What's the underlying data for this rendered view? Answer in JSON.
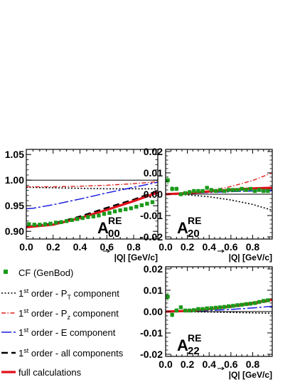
{
  "chart_data": [
    {
      "type": "line",
      "panel": "A00",
      "title": {
        "main": "A",
        "sup": "RE",
        "sub": "00"
      },
      "xlabel": "|Q| [GeV/c]",
      "xlim": [
        0.0,
        0.98
      ],
      "ylim": [
        0.885,
        1.06
      ],
      "xticks": [
        "0.0",
        "0.2",
        "0.4",
        "0.6",
        "0.8"
      ],
      "yticks": [
        "0.90",
        "0.95",
        "1.00",
        "1.05"
      ],
      "yticks_values": [
        0.9,
        0.95,
        1.0,
        1.05
      ],
      "reference_line": 1.0,
      "markers": {
        "name": "CF (GenBod)",
        "x": [
          0.02,
          0.06,
          0.1,
          0.14,
          0.18,
          0.22,
          0.26,
          0.3,
          0.34,
          0.38,
          0.42,
          0.46,
          0.5,
          0.54,
          0.58,
          0.62,
          0.66,
          0.7,
          0.74,
          0.78,
          0.82,
          0.86,
          0.9,
          0.94
        ],
        "y": [
          0.914,
          0.913,
          0.913,
          0.914,
          0.915,
          0.917,
          0.918,
          0.92,
          0.922,
          0.924,
          0.926,
          0.928,
          0.929,
          0.931,
          0.934,
          0.936,
          0.939,
          0.941,
          0.943,
          0.945,
          0.948,
          0.951,
          0.954,
          0.957
        ],
        "yerr": [
          0.003,
          0.002,
          0.002,
          0.002,
          0.002,
          0.002,
          0.002,
          0.002,
          0.002,
          0.002,
          0.002,
          0.002,
          0.002,
          0.002,
          0.002,
          0.002,
          0.002,
          0.002,
          0.002,
          0.002,
          0.002,
          0.002,
          0.002,
          0.002
        ]
      },
      "curves": [
        {
          "name": "1st order - PT component",
          "x": [
            0.0,
            0.2,
            0.4,
            0.6,
            0.8,
            0.98
          ],
          "y": [
            0.986,
            0.985,
            0.984,
            0.983,
            0.983,
            0.983
          ]
        },
        {
          "name": "1st order - Pz component",
          "x": [
            0.0,
            0.2,
            0.4,
            0.6,
            0.8,
            0.98
          ],
          "y": [
            0.987,
            0.987,
            0.988,
            0.99,
            0.993,
            0.997
          ]
        },
        {
          "name": "1st order - E component",
          "x": [
            0.0,
            0.05,
            0.2,
            0.4,
            0.6,
            0.8,
            0.98
          ],
          "y": [
            0.944,
            0.945,
            0.952,
            0.963,
            0.975,
            0.986,
            0.996
          ]
        },
        {
          "name": "1st order - all components",
          "x": [
            0.0,
            0.2,
            0.4,
            0.6,
            0.8,
            0.98
          ],
          "y": [
            0.909,
            0.915,
            0.929,
            0.946,
            0.962,
            0.979
          ]
        },
        {
          "name": "full calculations",
          "x": [
            0.0,
            0.2,
            0.4,
            0.6,
            0.8,
            0.98
          ],
          "y": [
            0.908,
            0.913,
            0.926,
            0.942,
            0.959,
            0.976
          ]
        }
      ]
    },
    {
      "type": "line",
      "panel": "A20",
      "title": {
        "main": "A",
        "sup": "RE",
        "sub": "20"
      },
      "xlabel": "|Q| [GeV/c]",
      "xlim": [
        0.0,
        0.98
      ],
      "ylim": [
        -0.021,
        0.021
      ],
      "xticks": [
        "0.0",
        "0.2",
        "0.4",
        "0.6",
        "0.8"
      ],
      "yticks": [
        "0.02",
        "0.01",
        "0.00",
        "-0.01",
        "-0.02"
      ],
      "yticks_values": [
        0.02,
        0.01,
        0.0,
        -0.01,
        -0.02
      ],
      "reference_line": 0.0,
      "markers": {
        "name": "CF (GenBod)",
        "x": [
          0.02,
          0.06,
          0.1,
          0.14,
          0.18,
          0.22,
          0.26,
          0.3,
          0.34,
          0.38,
          0.42,
          0.46,
          0.5,
          0.54,
          0.58,
          0.62,
          0.66,
          0.7,
          0.74,
          0.78,
          0.82,
          0.86,
          0.9,
          0.94
        ],
        "y": [
          0.0065,
          0.0025,
          0.0025,
          0.0,
          0.0005,
          0.001,
          0.0015,
          0.0015,
          0.0015,
          0.003,
          0.002,
          0.0015,
          0.002,
          0.0015,
          0.002,
          0.002,
          0.002,
          0.0025,
          0.002,
          0.0025,
          0.0015,
          0.002,
          0.0015,
          0.0015
        ],
        "yerr": [
          0.002,
          0.0012,
          0.001,
          0.0008,
          0.0006,
          0.0006,
          0.0005,
          0.0005,
          0.0005,
          0.0005,
          0.0005,
          0.0005,
          0.0005,
          0.0005,
          0.0005,
          0.0005,
          0.0005,
          0.0005,
          0.0005,
          0.0005,
          0.0005,
          0.0005,
          0.0005,
          0.0005
        ]
      },
      "curves": [
        {
          "name": "1st order - PT component",
          "x": [
            0.0,
            0.2,
            0.4,
            0.6,
            0.8,
            0.98
          ],
          "y": [
            0.0,
            -0.0003,
            -0.0012,
            -0.0027,
            -0.0048,
            -0.0075
          ]
        },
        {
          "name": "1st order - Pz component",
          "x": [
            0.0,
            0.2,
            0.4,
            0.6,
            0.8,
            0.98
          ],
          "y": [
            0.0,
            0.0004,
            0.0016,
            0.0036,
            0.0064,
            0.01
          ]
        },
        {
          "name": "1st order - E component",
          "x": [
            0.0,
            0.2,
            0.4,
            0.6,
            0.8,
            0.98
          ],
          "y": [
            0.0,
            0.0003,
            0.0008,
            0.0012,
            0.0015,
            0.0016
          ]
        },
        {
          "name": "1st order - all components",
          "x": [
            0.0,
            0.2,
            0.4,
            0.6,
            0.8,
            0.98
          ],
          "y": [
            0.0,
            0.0004,
            0.0012,
            0.002,
            0.0025,
            0.0027
          ]
        },
        {
          "name": "full calculations",
          "x": [
            0.0,
            0.2,
            0.4,
            0.6,
            0.8,
            0.98
          ],
          "y": [
            0.0,
            0.0005,
            0.0013,
            0.0021,
            0.0027,
            0.003
          ]
        }
      ]
    },
    {
      "type": "line",
      "panel": "A22",
      "title": {
        "main": "A",
        "sup": "RE",
        "sub": "22"
      },
      "xlabel": "|Q| [GeV/c]",
      "xlim": [
        0.0,
        0.98
      ],
      "ylim": [
        -0.021,
        0.021
      ],
      "xticks": [
        "0.0",
        "0.2",
        "0.4",
        "0.6",
        "0.8"
      ],
      "yticks": [
        "0.02",
        "0.01",
        "0.00",
        "-0.01",
        "-0.02"
      ],
      "yticks_values": [
        0.02,
        0.01,
        0.0,
        -0.01,
        -0.02
      ],
      "reference_line": 0.0,
      "markers": {
        "name": "CF (GenBod)",
        "x": [
          0.02,
          0.06,
          0.1,
          0.14,
          0.18,
          0.22,
          0.26,
          0.3,
          0.34,
          0.38,
          0.42,
          0.46,
          0.5,
          0.54,
          0.58,
          0.62,
          0.66,
          0.7,
          0.74,
          0.78,
          0.82,
          0.86,
          0.9,
          0.94
        ],
        "y": [
          0.007,
          -0.0015,
          0.0005,
          0.002,
          0.0005,
          0.0005,
          0.0007,
          0.0012,
          0.0012,
          0.0015,
          0.0016,
          0.0018,
          0.002,
          0.0022,
          0.0025,
          0.0027,
          0.003,
          0.0032,
          0.0035,
          0.0037,
          0.004,
          0.0045,
          0.005,
          0.0053
        ],
        "yerr": [
          0.002,
          0.0012,
          0.001,
          0.0008,
          0.0006,
          0.0006,
          0.0005,
          0.0005,
          0.0005,
          0.0005,
          0.0005,
          0.0005,
          0.0005,
          0.0005,
          0.0005,
          0.0005,
          0.0005,
          0.0005,
          0.0005,
          0.0005,
          0.0005,
          0.0005,
          0.0005,
          0.0005
        ]
      },
      "curves": [
        {
          "name": "1st order - PT component",
          "x": [
            0.0,
            0.2,
            0.4,
            0.6,
            0.8,
            0.98
          ],
          "y": [
            0.0,
            -0.0001,
            -0.0002,
            -0.0004,
            -0.0006,
            -0.0008
          ]
        },
        {
          "name": "1st order - Pz component",
          "x": [
            0.0,
            0.2,
            0.4,
            0.6,
            0.8,
            0.98
          ],
          "y": [
            0.0,
            0.0002,
            0.0009,
            0.0019,
            0.0033,
            0.005
          ]
        },
        {
          "name": "1st order - E component",
          "x": [
            0.0,
            0.2,
            0.4,
            0.6,
            0.8,
            0.98
          ],
          "y": [
            0.0,
            0.0001,
            0.0005,
            0.001,
            0.0017,
            0.0025
          ]
        },
        {
          "name": "1st order - all components",
          "x": [
            0.0,
            0.2,
            0.4,
            0.6,
            0.8,
            0.98
          ],
          "y": [
            0.0,
            0.0003,
            0.0012,
            0.0025,
            0.004,
            0.0055
          ]
        },
        {
          "name": "full calculations",
          "x": [
            0.0,
            0.2,
            0.4,
            0.6,
            0.8,
            0.98
          ],
          "y": [
            0.0,
            0.0003,
            0.0011,
            0.0024,
            0.004,
            0.0056
          ]
        }
      ]
    }
  ],
  "legend": {
    "entries": [
      {
        "key": "markers",
        "text": "CF (GenBod)"
      },
      {
        "key": "pt",
        "pre": "1",
        "sup": "st",
        "post": " order - P",
        "sub": "T",
        "tail": " component"
      },
      {
        "key": "pz",
        "pre": "1",
        "sup": "st",
        "post": " order - P",
        "sub": "z",
        "tail": " component"
      },
      {
        "key": "e",
        "pre": "1",
        "sup": "st",
        "post": " order - E component",
        "sub": "",
        "tail": ""
      },
      {
        "key": "all",
        "pre": "1",
        "sup": "st",
        "post": " order - all components",
        "sub": "",
        "tail": ""
      },
      {
        "key": "full",
        "text": "full calculations"
      }
    ]
  },
  "styles": {
    "markers": {
      "color": "#1a9a1a"
    },
    "pt": {
      "color": "#000000",
      "dash": "2,2.5",
      "width": 1.6
    },
    "pz": {
      "color": "#e0201a",
      "dash": "6,2.5,1.5,2.5",
      "width": 1.4
    },
    "e": {
      "color": "#1a1ae0",
      "dash": "14,3,3,3",
      "width": 1.5
    },
    "all": {
      "color": "#000000",
      "dash": "9,5",
      "width": 2.4
    },
    "full": {
      "color": "#e0101a",
      "dash": "",
      "width": 3.2
    }
  }
}
